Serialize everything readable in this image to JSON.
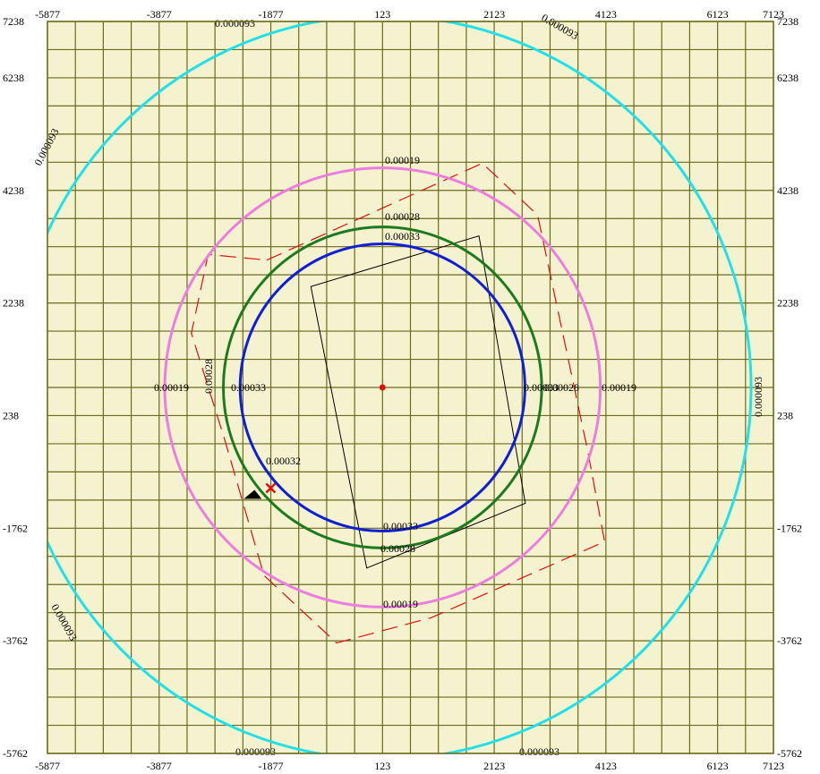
{
  "chart_data": {
    "type": "contour",
    "x_ticks": [
      "-5877",
      "-3877",
      "-1877",
      "123",
      "2123",
      "4123",
      "6123",
      "7123"
    ],
    "y_ticks": [
      "7238",
      "6238",
      "4238",
      "2238",
      "238",
      "-1762",
      "-3762",
      "-5762"
    ],
    "xlim": [
      -5877,
      7123
    ],
    "ylim": [
      -5762,
      7238
    ],
    "grid": true,
    "grid_step": 500,
    "colors": {
      "background": "#f5f3cf",
      "grid": "#6b6a1e",
      "cyan": "#22e0e8",
      "pink": "#ec7ee0",
      "green": "#1e7a1e",
      "blue": "#1020d0",
      "red_dashed": "#e01010",
      "polygon": "#000000"
    },
    "contours": [
      {
        "level": "0.000093",
        "color": "cyan",
        "center": [
          123,
          738
        ],
        "radius": 6600,
        "labels": [
          "0.000093",
          "0.000093",
          "0.000093",
          "0.000093",
          "0.000093",
          "0.000093",
          "0.000093"
        ]
      },
      {
        "level": "0.00019",
        "color": "pink",
        "center": [
          123,
          738
        ],
        "radius": 3900,
        "labels": [
          "0.00019",
          "0.00019",
          "0.00019",
          "0.00019"
        ]
      },
      {
        "level": "0.00028",
        "color": "green",
        "center": [
          123,
          738
        ],
        "radius": 2850,
        "labels": [
          "0.00028",
          "0.00028",
          "0.00028",
          "0.00028"
        ]
      },
      {
        "level": "0.00033",
        "color": "blue",
        "center": [
          123,
          738
        ],
        "radius": 2550,
        "labels": [
          "0.00033",
          "0.00033",
          "0.00033",
          "0.00033"
        ]
      }
    ],
    "extra_label": "0.00032",
    "source_point": [
      123,
      738
    ],
    "polygon": [
      [
        -1160,
        2530
      ],
      [
        1850,
        3430
      ],
      [
        2680,
        -1320
      ],
      [
        -160,
        -2470
      ]
    ],
    "dashed_outline": [
      [
        -1950,
        3000
      ],
      [
        1910,
        4720
      ],
      [
        2900,
        3800
      ],
      [
        3800,
        -400
      ],
      [
        4100,
        -2000
      ],
      [
        1000,
        -3350
      ],
      [
        -700,
        -3800
      ],
      [
        -2000,
        -2600
      ],
      [
        -2700,
        -200
      ],
      [
        -3300,
        1700
      ],
      [
        -3000,
        3100
      ]
    ],
    "marker": [
      -1880,
      -1050
    ]
  }
}
